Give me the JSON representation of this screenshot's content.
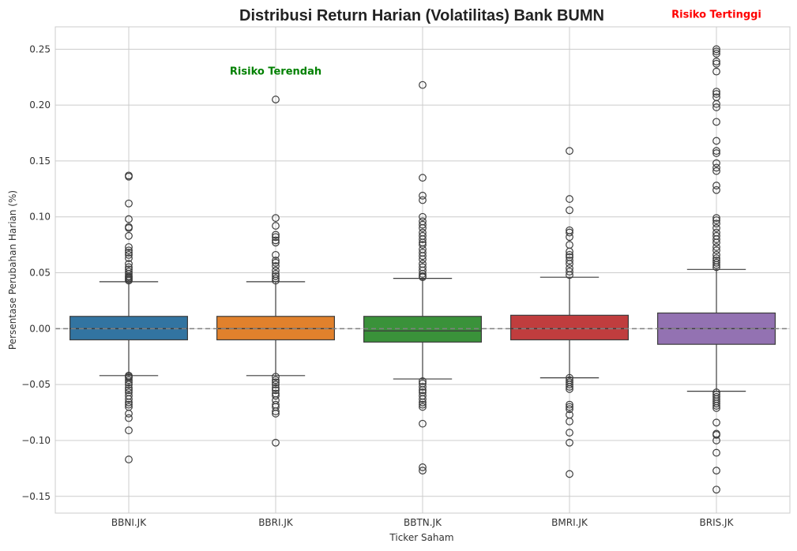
{
  "chart_data": {
    "type": "box",
    "title": "Distribusi Return Harian (Volatilitas) Bank BUMN",
    "xlabel": "Ticker Saham",
    "ylabel": "Persentase Perubahan Harian (%)",
    "ylim": [
      -0.165,
      0.27
    ],
    "yticks": [
      0.25,
      0.2,
      0.15,
      0.1,
      0.05,
      0.0,
      -0.05,
      -0.1,
      -0.15
    ],
    "ytick_labels": [
      "0.25",
      "0.20",
      "0.15",
      "0.10",
      "0.05",
      "0.00",
      "−0.05",
      "−0.10",
      "−0.15"
    ],
    "grid": true,
    "reference_line": {
      "y": 0,
      "style": "dashed",
      "color": "#808080"
    },
    "categories": [
      "BBNI.JK",
      "BBRI.JK",
      "BBTN.JK",
      "BMRI.JK",
      "BRIS.JK"
    ],
    "colors": [
      "#3274a1",
      "#e1812c",
      "#3a923a",
      "#c03d3e",
      "#9372b2"
    ],
    "boxes": [
      {
        "q1": -0.01,
        "median": 0.0,
        "q3": 0.011,
        "whisker_low": -0.042,
        "whisker_high": 0.042,
        "outliers": [
          0.137,
          0.136,
          0.112,
          0.098,
          0.091,
          0.09,
          0.083,
          0.073,
          0.07,
          0.068,
          0.066,
          0.063,
          0.058,
          0.055,
          0.053,
          0.051,
          0.049,
          0.047,
          0.046,
          0.045,
          0.044,
          0.043,
          -0.042,
          -0.043,
          -0.044,
          -0.046,
          -0.048,
          -0.05,
          -0.053,
          -0.055,
          -0.057,
          -0.06,
          -0.063,
          -0.066,
          -0.068,
          -0.07,
          -0.076,
          -0.08,
          -0.091,
          -0.117
        ]
      },
      {
        "q1": -0.01,
        "median": 0.0,
        "q3": 0.011,
        "whisker_low": -0.042,
        "whisker_high": 0.042,
        "outliers": [
          0.205,
          0.099,
          0.092,
          0.084,
          0.082,
          0.079,
          0.077,
          0.066,
          0.061,
          0.059,
          0.056,
          0.052,
          0.049,
          0.047,
          0.045,
          0.043,
          -0.043,
          -0.046,
          -0.048,
          -0.05,
          -0.053,
          -0.055,
          -0.058,
          -0.06,
          -0.064,
          -0.068,
          -0.07,
          -0.074,
          -0.076,
          -0.102
        ]
      },
      {
        "q1": -0.012,
        "median": -0.002,
        "q3": 0.011,
        "whisker_low": -0.045,
        "whisker_high": 0.045,
        "outliers": [
          0.218,
          0.135,
          0.119,
          0.115,
          0.1,
          0.096,
          0.093,
          0.09,
          0.086,
          0.083,
          0.08,
          0.077,
          0.075,
          0.071,
          0.068,
          0.065,
          0.062,
          0.058,
          0.055,
          0.052,
          0.049,
          0.047,
          0.046,
          -0.047,
          -0.049,
          -0.052,
          -0.055,
          -0.057,
          -0.06,
          -0.063,
          -0.066,
          -0.068,
          -0.07,
          -0.085,
          -0.124,
          -0.127
        ]
      },
      {
        "q1": -0.01,
        "median": 0.0,
        "q3": 0.012,
        "whisker_low": -0.044,
        "whisker_high": 0.046,
        "outliers": [
          0.159,
          0.116,
          0.106,
          0.088,
          0.086,
          0.082,
          0.075,
          0.069,
          0.066,
          0.064,
          0.061,
          0.058,
          0.054,
          0.051,
          0.048,
          -0.044,
          -0.046,
          -0.048,
          -0.05,
          -0.052,
          -0.054,
          -0.068,
          -0.07,
          -0.072,
          -0.077,
          -0.083,
          -0.093,
          -0.102,
          -0.13
        ]
      },
      {
        "q1": -0.014,
        "median": 0.0,
        "q3": 0.014,
        "whisker_low": -0.056,
        "whisker_high": 0.053,
        "outliers": [
          0.25,
          0.248,
          0.246,
          0.239,
          0.237,
          0.23,
          0.212,
          0.21,
          0.207,
          0.201,
          0.198,
          0.185,
          0.168,
          0.159,
          0.157,
          0.148,
          0.144,
          0.141,
          0.128,
          0.124,
          0.099,
          0.097,
          0.094,
          0.09,
          0.086,
          0.083,
          0.08,
          0.077,
          0.073,
          0.07,
          0.066,
          0.063,
          0.061,
          0.059,
          0.057,
          0.055,
          -0.057,
          -0.059,
          -0.061,
          -0.063,
          -0.065,
          -0.067,
          -0.069,
          -0.071,
          -0.084,
          -0.094,
          -0.095,
          -0.1,
          -0.111,
          -0.127,
          -0.144
        ]
      }
    ],
    "annotations": [
      {
        "text": "Risiko Terendah",
        "color": "#008000",
        "x_category": 1,
        "y": 0.23
      },
      {
        "text": "Risiko Tertinggi",
        "color": "#ff0000",
        "x_category": 4,
        "y": 0.281
      }
    ]
  }
}
